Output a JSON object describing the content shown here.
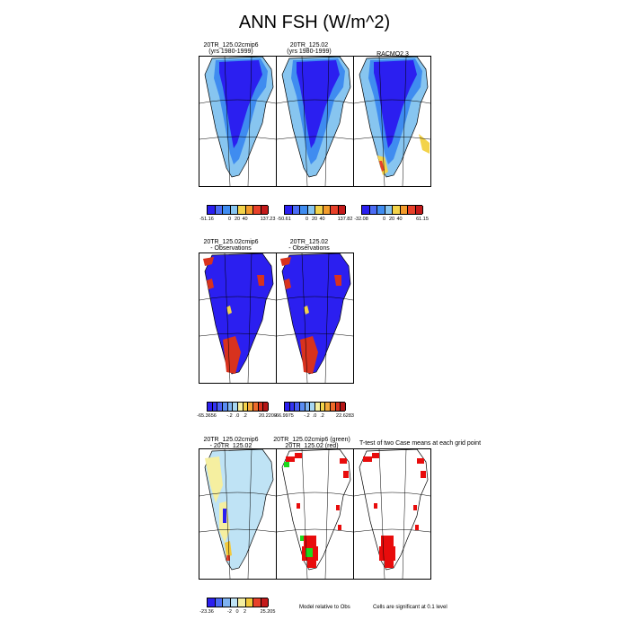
{
  "title": "ANN FSH (W/m^2)",
  "rows": [
    {
      "panels": [
        {
          "id": "r1p1",
          "title1": "20TR_125.02cmip6",
          "title2": "(yrs 1980-1999)",
          "fill": "flux1"
        },
        {
          "id": "r1p2",
          "title1": "20TR_125.02",
          "title2": "(yrs 1980-1999)",
          "fill": "flux2"
        },
        {
          "id": "r1p3",
          "title1": "RACMO2.3",
          "title2": "",
          "fill": "racmo"
        }
      ],
      "colorbars": [
        {
          "id": "cb1",
          "labels": [
            "-51.16",
            "0",
            "20",
            "40",
            "137.23"
          ],
          "colors": [
            "#2b1ff0",
            "#4b6cf5",
            "#3f8cf0",
            "#87c5f0",
            "#f3d34a",
            "#f39c2c",
            "#e8412a",
            "#c41a1a"
          ]
        },
        {
          "id": "cb2",
          "labels": [
            "-50.61",
            "0",
            "20",
            "40",
            "137.82"
          ],
          "colors": [
            "#2b1ff0",
            "#4b6cf5",
            "#3f8cf0",
            "#87c5f0",
            "#f3d34a",
            "#f39c2c",
            "#e8412a",
            "#c41a1a"
          ]
        },
        {
          "id": "cb3",
          "labels": [
            "-32.08",
            "0",
            "20",
            "40",
            "61.15"
          ],
          "colors": [
            "#2b1ff0",
            "#4b6cf5",
            "#3f8cf0",
            "#87c5f0",
            "#f3d34a",
            "#f39c2c",
            "#e8412a",
            "#c41a1a"
          ]
        }
      ]
    },
    {
      "panels": [
        {
          "id": "r2p1",
          "title1": "20TR_125.02cmip6",
          "title2": "- Observations",
          "fill": "diff1"
        },
        {
          "id": "r2p2",
          "title1": "20TR_125.02",
          "title2": "- Observations",
          "fill": "diff2"
        }
      ],
      "colorbars": [
        {
          "id": "cb4",
          "labels": [
            "-65.3656",
            "-.2",
            ".0",
            ".2",
            "20.2209"
          ],
          "colors": [
            "#2b1ff0",
            "#3434f2",
            "#4a5ef4",
            "#5a8cf2",
            "#7fb3f0",
            "#a7d6f2",
            "#f5efa0",
            "#f3d34a",
            "#f3a93a",
            "#ee6a2a",
            "#d8321e",
            "#b51616"
          ]
        },
        {
          "id": "cb5",
          "labels": [
            "-66.9975",
            "-.2",
            ".0",
            ".2",
            "22.6283"
          ],
          "colors": [
            "#2b1ff0",
            "#3434f2",
            "#4a5ef4",
            "#5a8cf2",
            "#7fb3f0",
            "#a7d6f2",
            "#f5efa0",
            "#f3d34a",
            "#f3a93a",
            "#ee6a2a",
            "#d8321e",
            "#b51616"
          ]
        }
      ]
    },
    {
      "panels": [
        {
          "id": "r3p1",
          "title1": "20TR_125.02cmip6",
          "title2": "- 20TR_125.02",
          "fill": "cdiff"
        },
        {
          "id": "r3p2",
          "title1": "20TR_125.02cmip6 (green)",
          "title2": "20TR_125.02 (red)",
          "fill": "sig1"
        },
        {
          "id": "r3p3",
          "title1": "T-test of two Case means at each grid point",
          "title2": "",
          "fill": "sig2"
        }
      ],
      "colorbars": [
        {
          "id": "cb6",
          "labels": [
            "-23.36",
            "-2",
            "0",
            "2",
            "25.205"
          ],
          "colors": [
            "#2b1ff0",
            "#4b6cf5",
            "#7fb3f0",
            "#bfe3f5",
            "#f5efa0",
            "#f3c93a",
            "#e8412a",
            "#c41a1a"
          ]
        }
      ],
      "notes": [
        "Model relative to Obs",
        "Cells are significant at 0.1 level"
      ]
    }
  ],
  "chart_data": {
    "type": "heatmap",
    "title": "ANN FSH (W/m^2)",
    "panels": [
      {
        "title": "20TR_125.02cmip6 (yrs 1980-1999)",
        "range": [
          -51.16,
          137.23
        ],
        "ticks": [
          0,
          20,
          40
        ]
      },
      {
        "title": "20TR_125.02 (yrs 1980-1999)",
        "range": [
          -50.61,
          137.82
        ],
        "ticks": [
          0,
          20,
          40
        ]
      },
      {
        "title": "RACMO2.3",
        "range": [
          -32.08,
          61.15
        ],
        "ticks": [
          0,
          20,
          40
        ]
      },
      {
        "title": "20TR_125.02cmip6 - Observations",
        "range": [
          -65.3656,
          20.2209
        ],
        "ticks": [
          -0.2,
          0.0,
          0.2
        ]
      },
      {
        "title": "20TR_125.02 - Observations",
        "range": [
          -66.9975,
          22.6283
        ],
        "ticks": [
          -0.2,
          0.0,
          0.2
        ]
      },
      {
        "title": "20TR_125.02cmip6 - 20TR_125.02",
        "range": [
          -23.36,
          25.205
        ],
        "ticks": [
          -2,
          0,
          2
        ]
      },
      {
        "title": "20TR_125.02cmip6 (green) 20TR_125.02 (red)",
        "note": "Model relative to Obs"
      },
      {
        "title": "T-test of two Case means at each grid point",
        "note": "Cells are significant at 0.1 level"
      }
    ]
  }
}
